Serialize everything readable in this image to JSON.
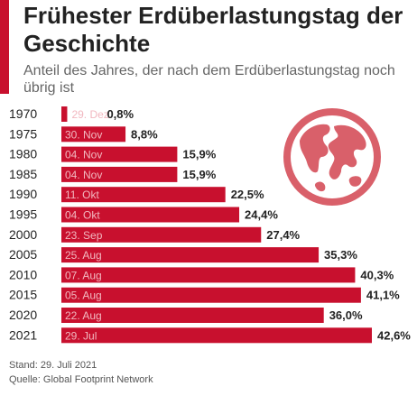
{
  "header": {
    "title": "Frühester Erdüberlastungstag der Geschichte",
    "subtitle": "Anteil des Jahres, der nach dem Erdüberlastungstag noch übrig ist"
  },
  "footer": {
    "stand": "Stand: 29. Juli 2021",
    "source": "Quelle: Global Footprint Network"
  },
  "icons": {
    "illustration": "globe-icon"
  },
  "colors": {
    "bar": "#c8102e",
    "date_label": "#f2b8c0",
    "accent": "#c8102e"
  },
  "chart_data": {
    "type": "bar",
    "orientation": "horizontal",
    "title": "Frühester Erdüberlastungstag der Geschichte",
    "subtitle": "Anteil des Jahres, der nach dem Erdüberlastungstag noch übrig ist",
    "categories": [
      "1970",
      "1975",
      "1980",
      "1985",
      "1990",
      "1995",
      "2000",
      "2005",
      "2010",
      "2015",
      "2020",
      "2021"
    ],
    "dates": [
      "29. Dez",
      "30. Nov",
      "04. Nov",
      "04. Nov",
      "11. Okt",
      "04. Okt",
      "23. Sep",
      "25. Aug",
      "07. Aug",
      "05. Aug",
      "22. Aug",
      "29. Jul"
    ],
    "values": [
      0.8,
      8.8,
      15.9,
      15.9,
      22.5,
      24.4,
      27.4,
      35.3,
      40.3,
      41.1,
      36.0,
      42.6
    ],
    "value_labels": [
      "0,8%",
      "8,8%",
      "15,9%",
      "15,9%",
      "22,5%",
      "24,4%",
      "27,4%",
      "35,3%",
      "40,3%",
      "41,1%",
      "36,0%",
      "42,6%"
    ],
    "xlim": [
      0,
      42.6
    ],
    "grid": false,
    "legend": "none"
  }
}
